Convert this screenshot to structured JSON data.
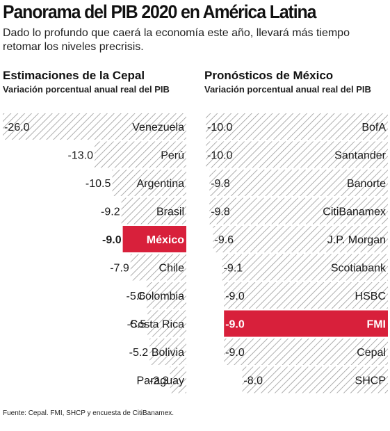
{
  "title": "Panorama del PIB 2020 en América Latina",
  "subtitle": "Dado lo profundo que caerá la economía este año, llevará más tiempo retomar los niveles precrisis.",
  "source": "Fuente: Cepal. FMI, SHCP y encuesta de CitiBanamex.",
  "colors": {
    "highlight": "#d8203b",
    "hatch": "#9a9a9a",
    "text": "#1a1a1a"
  },
  "chart_data": [
    {
      "type": "bar",
      "orientation": "horizontal",
      "title": "Estimaciones de la Cepal",
      "subtitle": "Variación porcentual anual real del PIB",
      "categories": [
        "Venezuela",
        "Perú",
        "Argentina",
        "Brasil",
        "México",
        "Chile",
        "Colombia",
        "Costa Rica",
        "Bolivia",
        "Paraguay"
      ],
      "values": [
        -26.0,
        -13.0,
        -10.5,
        -9.2,
        -9.0,
        -7.9,
        -5.6,
        -5.5,
        -5.2,
        -2.3
      ],
      "labels": [
        "-26.0",
        "-13.0",
        "-10.5",
        "-9.2",
        "-9.0",
        "-7.9",
        "-5.6",
        "-5.5",
        "-5.2",
        "-2.3"
      ],
      "highlight": "México",
      "xlim": [
        -26,
        0
      ]
    },
    {
      "type": "bar",
      "orientation": "horizontal",
      "title": "Pronósticos de México",
      "subtitle": "Variación porcentual anual real del PIB",
      "categories": [
        "BofA",
        "Santander",
        "Banorte",
        "CitiBanamex",
        "J.P. Morgan",
        "Scotiabank",
        "HSBC",
        "FMI",
        "Cepal",
        "SHCP"
      ],
      "values": [
        -10.0,
        -10.0,
        -9.8,
        -9.8,
        -9.6,
        -9.1,
        -9.0,
        -9.0,
        -9.0,
        -8.0
      ],
      "labels": [
        "-10.0",
        "-10.0",
        "-9.8",
        "-9.8",
        "-9.6",
        "-9.1",
        "-9.0",
        "-9.0",
        "-9.0",
        "-8.0"
      ],
      "highlight": "FMI",
      "xlim": [
        -10,
        0
      ]
    }
  ]
}
